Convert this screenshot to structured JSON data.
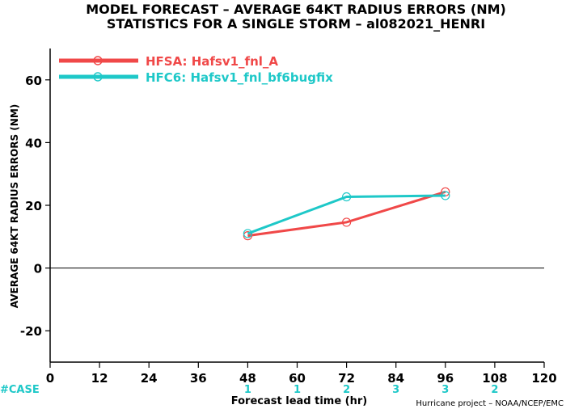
{
  "chart_data": {
    "type": "line",
    "title": "MODEL FORECAST – AVERAGE 64KT RADIUS ERRORS (NM)",
    "subtitle": "STATISTICS FOR A SINGLE STORM – al082021_HENRI",
    "xlabel": "Forecast lead time (hr)",
    "ylabel": "AVERAGE 64KT RADIUS ERRORS (NM)",
    "xlim": [
      0,
      120
    ],
    "ylim": [
      -30,
      70
    ],
    "xticks": [
      0,
      12,
      24,
      36,
      48,
      60,
      72,
      84,
      96,
      108,
      120
    ],
    "yticks": [
      -20,
      0,
      20,
      40,
      60
    ],
    "legend_position": "top-left",
    "grid": false,
    "series": [
      {
        "name": "HFSA: Hafsv1_fnl_A",
        "color": "#f04848",
        "x": [
          48,
          72,
          96
        ],
        "y": [
          10.3,
          14.6,
          24.3
        ]
      },
      {
        "name": "HFC6: Hafsv1_fnl_bf6bugfix",
        "color": "#1ec8c8",
        "x": [
          48,
          72,
          96
        ],
        "y": [
          11.0,
          22.7,
          23.1
        ]
      }
    ],
    "case_label": "#CASE",
    "case_color": "#1ec8c8",
    "case_counts": [
      {
        "x": 48,
        "n": "1"
      },
      {
        "x": 60,
        "n": "1"
      },
      {
        "x": 72,
        "n": "2"
      },
      {
        "x": 84,
        "n": "3"
      },
      {
        "x": 96,
        "n": "3"
      },
      {
        "x": 108,
        "n": "2"
      }
    ],
    "credit": "Hurricane project – NOAA/NCEP/EMC"
  }
}
